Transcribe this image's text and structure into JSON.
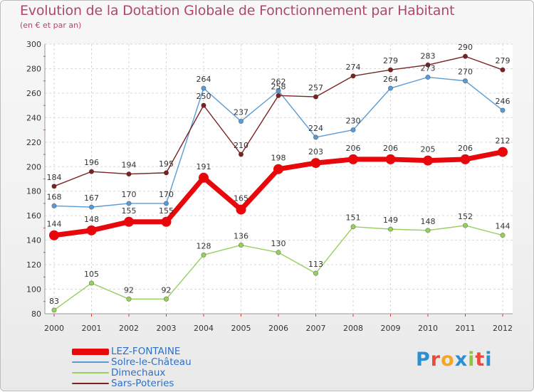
{
  "title": "Evolution de la Dotation Globale de Fonctionnement par Habitant",
  "subtitle": "(en € et par an)",
  "logo": {
    "text": "Proxiti",
    "letter_colors": [
      "#2c8fd1",
      "#e84c3d",
      "#f5a623",
      "#2c8fd1",
      "#8cc63f",
      "#e84c3d",
      "#2c8fd1"
    ]
  },
  "chart_data": {
    "type": "line",
    "title": "Evolution de la Dotation Globale de Fonctionnement par Habitant",
    "subtitle": "(en € et par an)",
    "x": [
      "2000",
      "2001",
      "2002",
      "2003",
      "2004",
      "2005",
      "2006",
      "2007",
      "2008",
      "2009",
      "2010",
      "2011",
      "2012"
    ],
    "ylim": [
      80,
      300
    ],
    "yticks": [
      80,
      100,
      120,
      140,
      160,
      180,
      200,
      220,
      240,
      260,
      280,
      300
    ],
    "grid": true,
    "legend_position": "bottom-left",
    "series": [
      {
        "name": "LEZ-FONTAINE",
        "color": "#e8070b",
        "emphasis": true,
        "values": [
          144,
          148,
          155,
          155,
          191,
          165,
          198,
          203,
          206,
          206,
          205,
          206,
          212
        ]
      },
      {
        "name": "Solre-le-Château",
        "color": "#5b9bd5",
        "values": [
          168,
          167,
          170,
          170,
          264,
          237,
          262,
          224,
          230,
          264,
          273,
          270,
          246
        ]
      },
      {
        "name": "Dimechaux",
        "color": "#98cf5f",
        "values": [
          83,
          105,
          92,
          92,
          128,
          136,
          130,
          113,
          151,
          149,
          148,
          152,
          144
        ]
      },
      {
        "name": "Sars-Poteries",
        "color": "#7a2323",
        "values": [
          184,
          196,
          194,
          195,
          250,
          210,
          258,
          257,
          274,
          279,
          283,
          290,
          279
        ]
      }
    ]
  }
}
